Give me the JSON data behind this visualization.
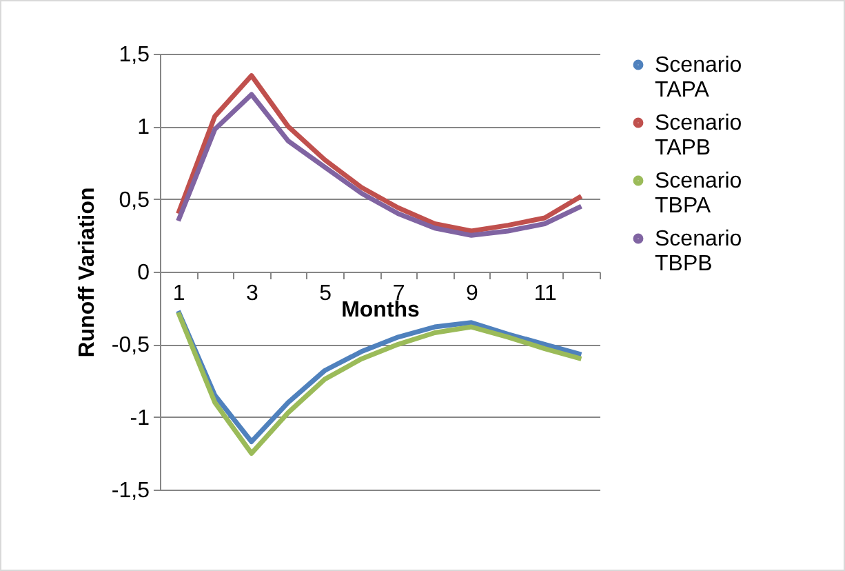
{
  "chart_data": {
    "type": "line",
    "xlabel": "Months",
    "ylabel": "Runoff Variation",
    "categories": [
      "1",
      null,
      "3",
      null,
      "5",
      null,
      "7",
      null,
      "9",
      null,
      "11",
      null
    ],
    "series": [
      {
        "name": "Scenario TAPA",
        "color": "#4f81bd",
        "values": [
          -0.27,
          -0.85,
          -1.17,
          -0.9,
          -0.68,
          -0.55,
          -0.45,
          -0.38,
          -0.35,
          -0.43,
          -0.5,
          -0.57
        ]
      },
      {
        "name": "Scenario TAPB",
        "color": "#c0504d",
        "values": [
          0.4,
          1.07,
          1.35,
          1.0,
          0.77,
          0.58,
          0.44,
          0.33,
          0.28,
          0.32,
          0.37,
          0.52
        ]
      },
      {
        "name": "Scenario TBPA",
        "color": "#9bbb59",
        "values": [
          -0.28,
          -0.9,
          -1.25,
          -0.97,
          -0.74,
          -0.6,
          -0.5,
          -0.42,
          -0.38,
          -0.45,
          -0.53,
          -0.6
        ]
      },
      {
        "name": "Scenario TBPB",
        "color": "#8064a2",
        "values": [
          0.35,
          0.98,
          1.22,
          0.9,
          0.72,
          0.54,
          0.4,
          0.3,
          0.25,
          0.28,
          0.33,
          0.45
        ]
      }
    ],
    "ylim": [
      -1.5,
      1.5
    ],
    "yticks": [
      {
        "value": -1.5,
        "label": "-1,5"
      },
      {
        "value": -1,
        "label": "-1"
      },
      {
        "value": -0.5,
        "label": "-0,5"
      },
      0,
      {
        "value": 0.5,
        "label": "0,5"
      },
      1,
      {
        "value": 1.5,
        "label": "1,5"
      }
    ],
    "grid": "y",
    "legend": "right",
    "marker": "none",
    "line_style": "solid"
  }
}
